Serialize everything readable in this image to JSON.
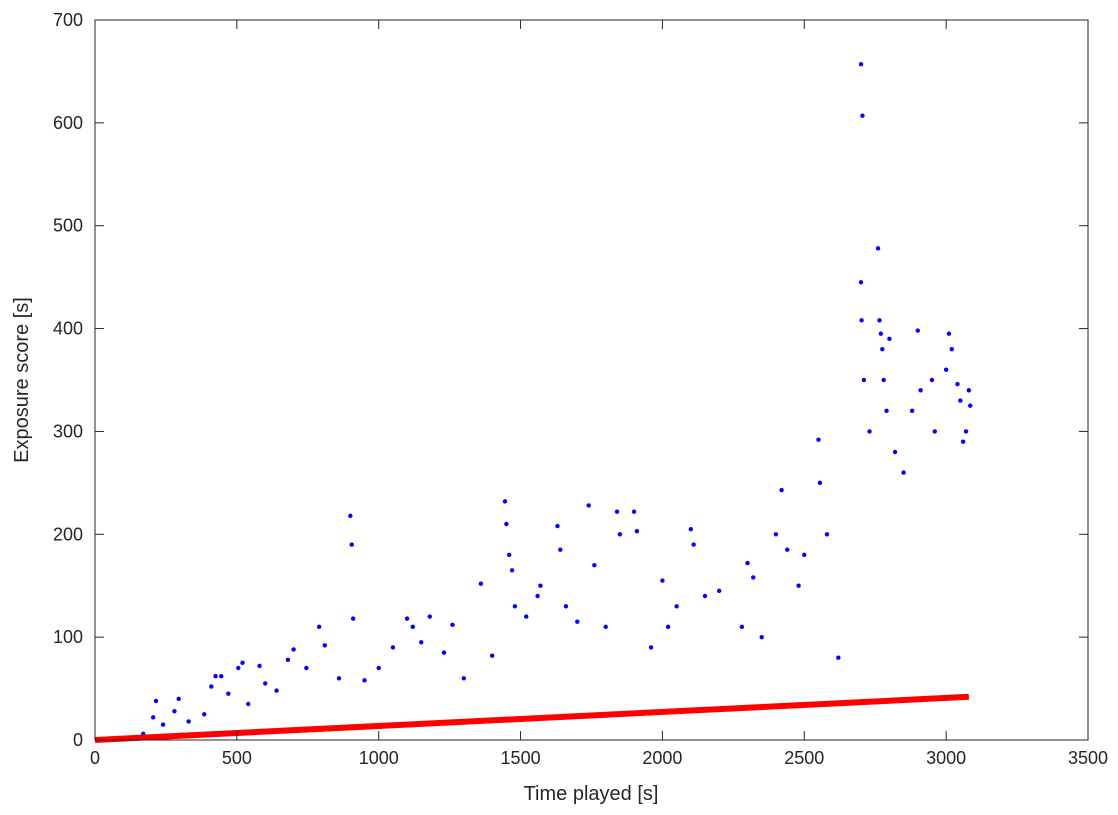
{
  "chart_data": {
    "type": "scatter",
    "title": "",
    "xlabel": "Time played [s]",
    "ylabel": "Exposure score [s]",
    "xlim": [
      0,
      3500
    ],
    "ylim": [
      0,
      700
    ],
    "xticks": [
      0,
      500,
      1000,
      1500,
      2000,
      2500,
      3000,
      3500
    ],
    "yticks": [
      0,
      100,
      200,
      300,
      400,
      500,
      600,
      700
    ],
    "grid": false,
    "legend": "none",
    "colors": {
      "points": "#0000ff",
      "fit": "#ff0000",
      "axes": "#262626"
    },
    "series": [
      {
        "type": "scatter",
        "points": [
          [
            80,
            2
          ],
          [
            170,
            6
          ],
          [
            205,
            22
          ],
          [
            215,
            38
          ],
          [
            240,
            15
          ],
          [
            280,
            28
          ],
          [
            295,
            40
          ],
          [
            330,
            18
          ],
          [
            385,
            25
          ],
          [
            410,
            52
          ],
          [
            425,
            62
          ],
          [
            445,
            62
          ],
          [
            470,
            45
          ],
          [
            505,
            70
          ],
          [
            520,
            75
          ],
          [
            540,
            35
          ],
          [
            580,
            72
          ],
          [
            600,
            55
          ],
          [
            640,
            48
          ],
          [
            680,
            78
          ],
          [
            700,
            88
          ],
          [
            745,
            70
          ],
          [
            790,
            110
          ],
          [
            810,
            92
          ],
          [
            860,
            60
          ],
          [
            900,
            218
          ],
          [
            905,
            190
          ],
          [
            910,
            118
          ],
          [
            950,
            58
          ],
          [
            1000,
            70
          ],
          [
            1050,
            90
          ],
          [
            1100,
            118
          ],
          [
            1120,
            110
          ],
          [
            1150,
            95
          ],
          [
            1180,
            120
          ],
          [
            1230,
            85
          ],
          [
            1260,
            112
          ],
          [
            1300,
            60
          ],
          [
            1360,
            152
          ],
          [
            1400,
            82
          ],
          [
            1445,
            232
          ],
          [
            1450,
            210
          ],
          [
            1460,
            180
          ],
          [
            1470,
            165
          ],
          [
            1480,
            130
          ],
          [
            1520,
            120
          ],
          [
            1560,
            140
          ],
          [
            1570,
            150
          ],
          [
            1630,
            208
          ],
          [
            1640,
            185
          ],
          [
            1660,
            130
          ],
          [
            1700,
            115
          ],
          [
            1740,
            228
          ],
          [
            1760,
            170
          ],
          [
            1800,
            110
          ],
          [
            1840,
            222
          ],
          [
            1850,
            200
          ],
          [
            1900,
            222
          ],
          [
            1910,
            203
          ],
          [
            1960,
            90
          ],
          [
            2000,
            155
          ],
          [
            2020,
            110
          ],
          [
            2050,
            130
          ],
          [
            2100,
            205
          ],
          [
            2110,
            190
          ],
          [
            2150,
            140
          ],
          [
            2200,
            145
          ],
          [
            2280,
            110
          ],
          [
            2300,
            172
          ],
          [
            2320,
            158
          ],
          [
            2350,
            100
          ],
          [
            2400,
            200
          ],
          [
            2420,
            243
          ],
          [
            2440,
            185
          ],
          [
            2480,
            150
          ],
          [
            2500,
            180
          ],
          [
            2550,
            292
          ],
          [
            2555,
            250
          ],
          [
            2580,
            200
          ],
          [
            2620,
            80
          ],
          [
            2700,
            657
          ],
          [
            2705,
            607
          ],
          [
            2700,
            445
          ],
          [
            2702,
            408
          ],
          [
            2710,
            350
          ],
          [
            2730,
            300
          ],
          [
            2760,
            478
          ],
          [
            2765,
            408
          ],
          [
            2770,
            395
          ],
          [
            2775,
            380
          ],
          [
            2780,
            350
          ],
          [
            2790,
            320
          ],
          [
            2800,
            390
          ],
          [
            2820,
            280
          ],
          [
            2850,
            260
          ],
          [
            2880,
            320
          ],
          [
            2900,
            398
          ],
          [
            2910,
            340
          ],
          [
            2950,
            350
          ],
          [
            2960,
            300
          ],
          [
            3000,
            360
          ],
          [
            3010,
            395
          ],
          [
            3020,
            380
          ],
          [
            3040,
            346
          ],
          [
            3050,
            330
          ],
          [
            3080,
            340
          ],
          [
            3085,
            325
          ],
          [
            3070,
            300
          ],
          [
            3060,
            290
          ]
        ]
      },
      {
        "type": "line",
        "x": [
          0,
          3080
        ],
        "y": [
          0,
          42
        ]
      }
    ]
  }
}
